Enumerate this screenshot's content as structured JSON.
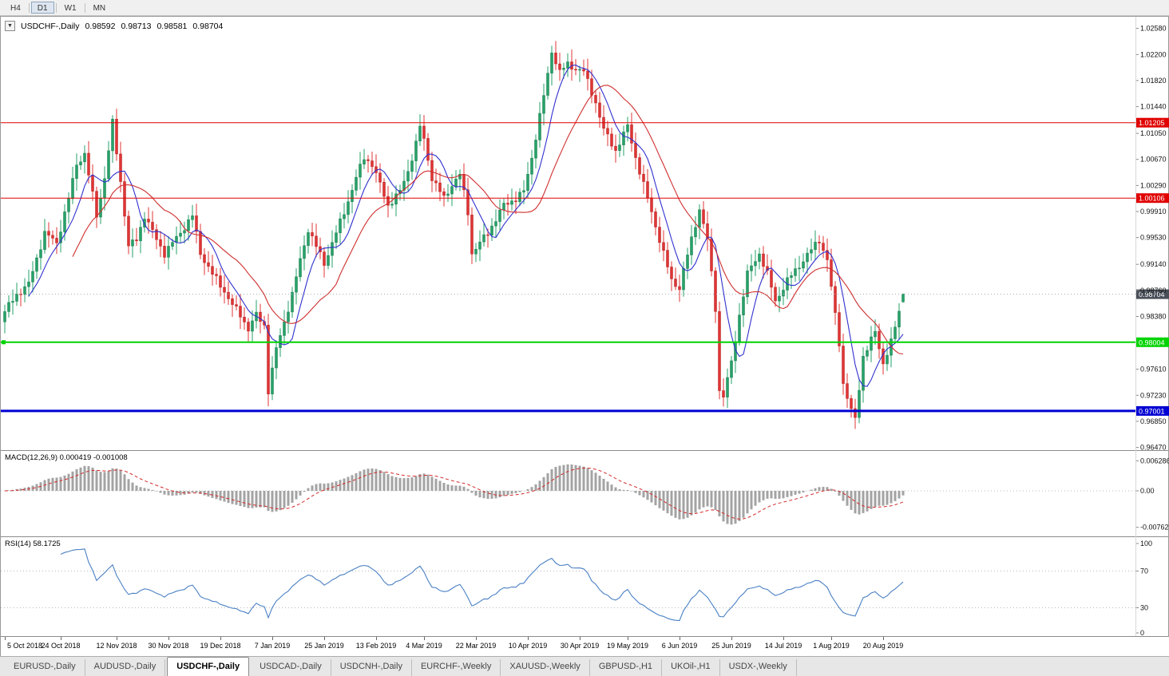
{
  "toolbar": {
    "timeframes": [
      {
        "label": "H4",
        "active": false
      },
      {
        "label": "D1",
        "active": true
      },
      {
        "label": "W1",
        "active": false
      },
      {
        "label": "MN",
        "active": false
      }
    ]
  },
  "chart": {
    "title": "USDCHF-,Daily",
    "ohlc": {
      "open": "0.98592",
      "high": "0.98713",
      "low": "0.98581",
      "close": "0.98704"
    },
    "menu_icon": "▼",
    "colors": {
      "up": "#26a269",
      "up_stroke": "#1a7a4c",
      "down": "#e03434",
      "down_stroke": "#b42222",
      "ma_fast": "#3030cf",
      "ma_slow": "#cf2e2e",
      "last_tag": "#49505a",
      "last_line": "#a8aeb4",
      "macd_hist": "#a3a3a3",
      "macd_signal": "#d42a2a",
      "rsi_line": "#4a80c4",
      "axis_text": "#111111"
    },
    "price_axis": {
      "ticks": [
        "1.02580",
        "1.02200",
        "1.01820",
        "1.01440",
        "1.01050",
        "1.00670",
        "1.00290",
        "0.99910",
        "0.99530",
        "0.99140",
        "0.98760",
        "0.98380",
        "0.97610",
        "0.97230",
        "0.96850",
        "0.96470"
      ]
    },
    "hlines": [
      {
        "price": 1.01205,
        "label": "1.01205",
        "color": "#e00000",
        "thickness": 1
      },
      {
        "price": 1.00106,
        "label": "1.00106",
        "color": "#e00000",
        "thickness": 1
      },
      {
        "price": 0.98004,
        "label": "0.98004",
        "color": "#00d400",
        "thickness": 2
      },
      {
        "price": 0.97001,
        "label": "0.97001",
        "color": "#0000d4",
        "thickness": 3
      }
    ],
    "last_price": {
      "value": 0.98704,
      "label": "0.98704"
    },
    "time_axis": [
      {
        "label": "5 Oct 2018",
        "i": 0
      },
      {
        "label": "24 Oct 2018",
        "i": 14
      },
      {
        "label": "12 Nov 2018",
        "i": 28
      },
      {
        "label": "30 Nov 2018",
        "i": 41
      },
      {
        "label": "19 Dec 2018",
        "i": 54
      },
      {
        "label": "7 Jan 2019",
        "i": 67
      },
      {
        "label": "25 Jan 2019",
        "i": 80
      },
      {
        "label": "13 Feb 2019",
        "i": 93
      },
      {
        "label": "4 Mar 2019",
        "i": 105
      },
      {
        "label": "22 Mar 2019",
        "i": 118
      },
      {
        "label": "10 Apr 2019",
        "i": 131
      },
      {
        "label": "30 Apr 2019",
        "i": 144
      },
      {
        "label": "19 May 2019",
        "i": 156
      },
      {
        "label": "6 Jun 2019",
        "i": 169
      },
      {
        "label": "25 Jun 2019",
        "i": 182
      },
      {
        "label": "14 Jul 2019",
        "i": 195
      },
      {
        "label": "1 Aug 2019",
        "i": 207
      },
      {
        "label": "20 Aug 2019",
        "i": 220
      }
    ]
  },
  "macd": {
    "label": "MACD(12,26,9) 0.000419 -0.001008",
    "axis": [
      "0.006286",
      "0.00",
      "-0.00762"
    ],
    "fast": 12,
    "slow": 26,
    "signal": 9
  },
  "rsi": {
    "label": "RSI(14) 58.1725",
    "axis": [
      "100",
      "70",
      "30",
      "0"
    ],
    "period": 14,
    "levels": [
      70,
      30
    ]
  },
  "tabs": [
    {
      "label": "EURUSD-,Daily",
      "active": false
    },
    {
      "label": "AUDUSD-,Daily",
      "active": false
    },
    {
      "label": "USDCHF-,Daily",
      "active": true
    },
    {
      "label": "USDCAD-,Daily",
      "active": false
    },
    {
      "label": "USDCNH-,Daily",
      "active": false
    },
    {
      "label": "EURCHF-,Weekly",
      "active": false
    },
    {
      "label": "XAUUSD-,Weekly",
      "active": false
    },
    {
      "label": "GBPUSD-,H1",
      "active": false
    },
    {
      "label": "UKOil-,H1",
      "active": false
    },
    {
      "label": "USDX-,Weekly",
      "active": false
    }
  ],
  "chart_data": {
    "type": "candlestick",
    "symbol": "USDCHF-",
    "timeframe": "Daily",
    "title": "USDCHF-,Daily",
    "candle_count": 226,
    "price_range": [
      0.9643,
      1.0275
    ],
    "current": {
      "open": 0.98592,
      "high": 0.98713,
      "low": 0.98581,
      "close": 0.98704
    },
    "horizontal_levels": [
      1.01205,
      1.00106,
      0.98004,
      0.97001
    ],
    "indicators": {
      "macd": {
        "fast": 12,
        "slow": 26,
        "signal": 9,
        "main_value": 0.000419,
        "signal_value": -0.001008,
        "axis_max": 0.006286,
        "axis_min": -0.00762
      },
      "rsi": {
        "period": 14,
        "value": 58.1725,
        "levels": [
          70,
          30
        ]
      }
    },
    "close_anchors": [
      [
        0,
        0.9845
      ],
      [
        3,
        0.987
      ],
      [
        6,
        0.9885
      ],
      [
        10,
        0.996
      ],
      [
        13,
        0.9945
      ],
      [
        16,
        1.001
      ],
      [
        18,
        1.006
      ],
      [
        20,
        1.0075
      ],
      [
        23,
        0.9985
      ],
      [
        25,
        1.004
      ],
      [
        27,
        1.012
      ],
      [
        29,
        1.0035
      ],
      [
        31,
        0.994
      ],
      [
        33,
        0.995
      ],
      [
        35,
        0.9985
      ],
      [
        38,
        0.995
      ],
      [
        40,
        0.993
      ],
      [
        42,
        0.9945
      ],
      [
        44,
        0.996
      ],
      [
        47,
        0.9985
      ],
      [
        49,
        0.993
      ],
      [
        52,
        0.99
      ],
      [
        55,
        0.9875
      ],
      [
        57,
        0.9855
      ],
      [
        59,
        0.984
      ],
      [
        61,
        0.982
      ],
      [
        63,
        0.984
      ],
      [
        65,
        0.9825
      ],
      [
        66,
        0.973
      ],
      [
        68,
        0.979
      ],
      [
        70,
        0.983
      ],
      [
        72,
        0.987
      ],
      [
        74,
        0.992
      ],
      [
        76,
        0.9965
      ],
      [
        78,
        0.994
      ],
      [
        80,
        0.9915
      ],
      [
        82,
        0.9945
      ],
      [
        85,
        0.999
      ],
      [
        88,
        1.004
      ],
      [
        90,
        1.007
      ],
      [
        92,
        1.006
      ],
      [
        94,
        1.003
      ],
      [
        96,
        1.0
      ],
      [
        99,
        1.002
      ],
      [
        101,
        1.005
      ],
      [
        103,
        1.009
      ],
      [
        104,
        1.0115
      ],
      [
        105,
        1.0095
      ],
      [
        107,
        1.004
      ],
      [
        110,
        1.001
      ],
      [
        112,
        1.003
      ],
      [
        114,
        1.0045
      ],
      [
        116,
        0.999
      ],
      [
        117,
        0.993
      ],
      [
        119,
        0.9945
      ],
      [
        121,
        0.996
      ],
      [
        123,
        0.998
      ],
      [
        125,
        1.0
      ],
      [
        128,
        1.001
      ],
      [
        130,
        1.002
      ],
      [
        132,
        1.007
      ],
      [
        134,
        1.013
      ],
      [
        136,
        1.019
      ],
      [
        137,
        1.0225
      ],
      [
        139,
        1.0195
      ],
      [
        141,
        1.0205
      ],
      [
        143,
        1.02
      ],
      [
        145,
        1.0195
      ],
      [
        148,
        1.015
      ],
      [
        150,
        1.011
      ],
      [
        153,
        1.008
      ],
      [
        156,
        1.0115
      ],
      [
        158,
        1.007
      ],
      [
        160,
        1.003
      ],
      [
        162,
        0.999
      ],
      [
        164,
        0.995
      ],
      [
        166,
        0.991
      ],
      [
        167,
        0.989
      ],
      [
        169,
        0.988
      ],
      [
        170,
        0.9905
      ],
      [
        172,
        0.995
      ],
      [
        174,
        0.9995
      ],
      [
        176,
        0.995
      ],
      [
        178,
        0.985
      ],
      [
        179,
        0.973
      ],
      [
        180,
        0.9722
      ],
      [
        182,
        0.977
      ],
      [
        184,
        0.984
      ],
      [
        186,
        0.99
      ],
      [
        189,
        0.993
      ],
      [
        191,
        0.99
      ],
      [
        193,
        0.986
      ],
      [
        196,
        0.989
      ],
      [
        198,
        0.9905
      ],
      [
        200,
        0.992
      ],
      [
        202,
        0.9935
      ],
      [
        204,
        0.995
      ],
      [
        206,
        0.992
      ],
      [
        207,
        0.988
      ],
      [
        209,
        0.98
      ],
      [
        210,
        0.974
      ],
      [
        212,
        0.97
      ],
      [
        213,
        0.9688
      ],
      [
        215,
        0.978
      ],
      [
        218,
        0.9815
      ],
      [
        220,
        0.977
      ],
      [
        222,
        0.98
      ],
      [
        224,
        0.9845
      ],
      [
        225,
        0.98704
      ]
    ]
  }
}
